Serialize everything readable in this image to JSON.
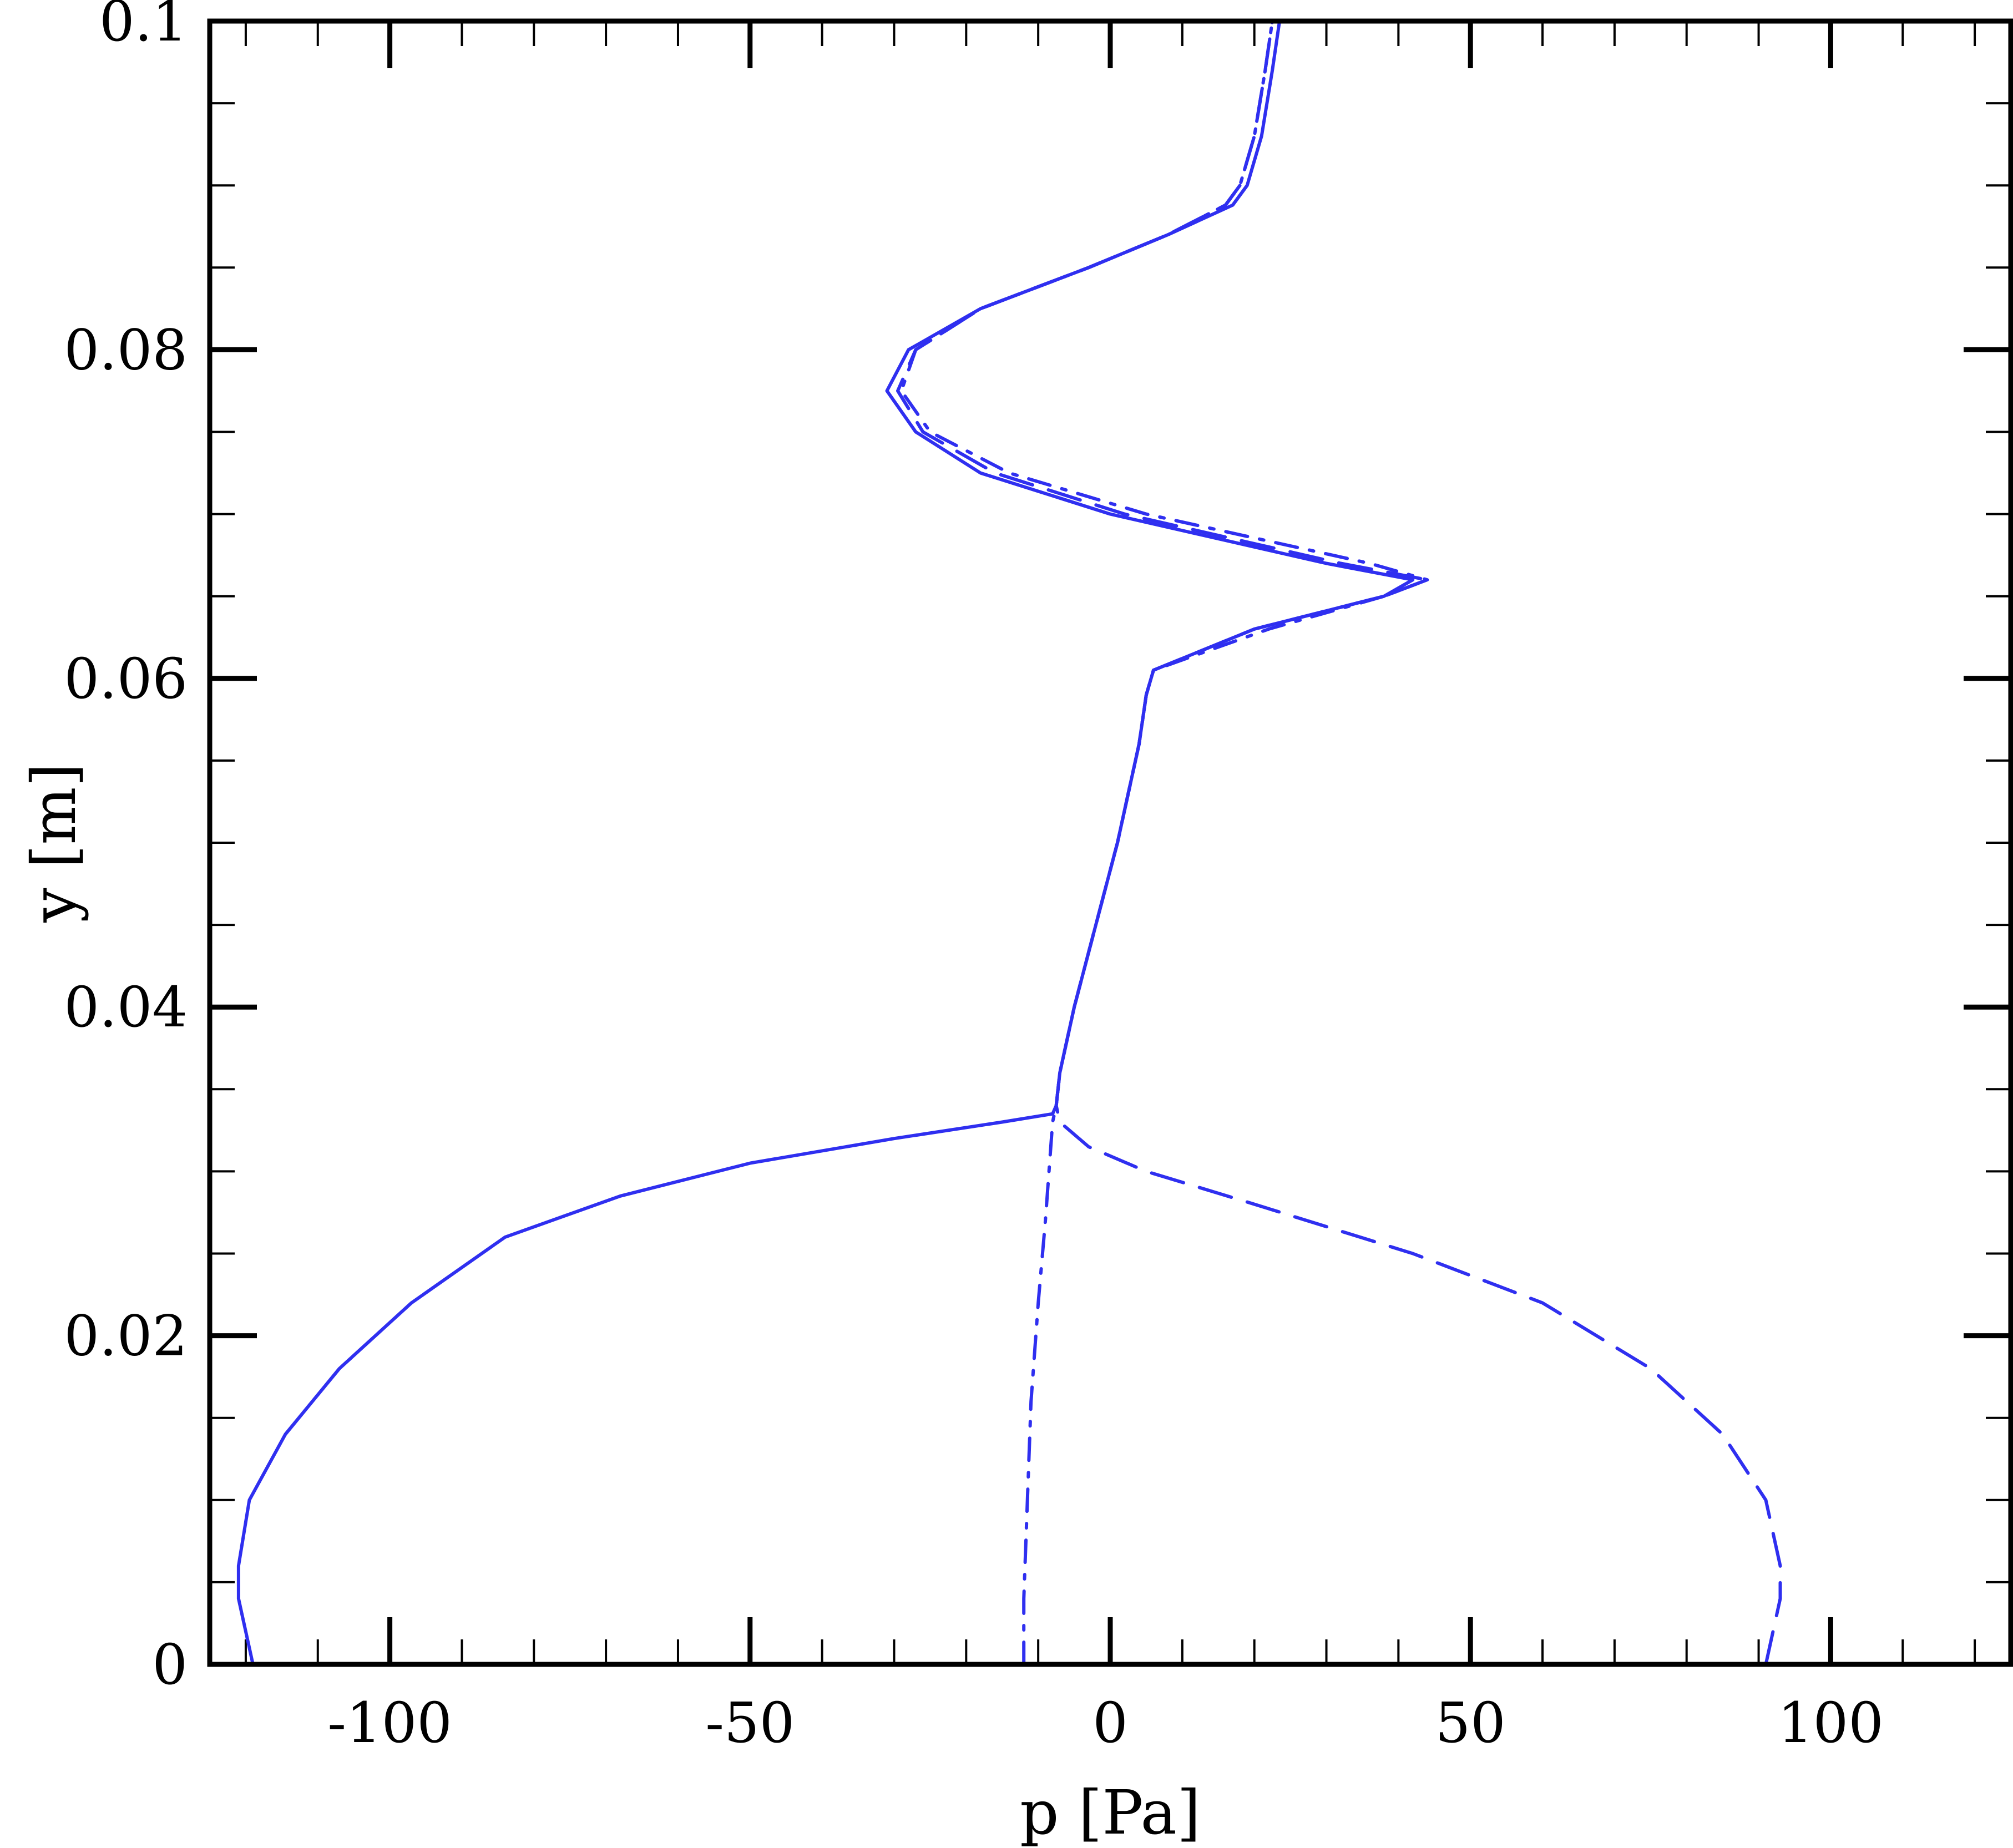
{
  "chart_data": {
    "type": "line",
    "title": "",
    "xlabel": "p [Pa]",
    "ylabel": "y [m]",
    "xlim": [
      -125,
      125
    ],
    "ylim": [
      0,
      0.1
    ],
    "x_ticks": [
      -100,
      -50,
      0,
      50,
      100
    ],
    "x_tick_labels": [
      "-100",
      "-50",
      "0",
      "50",
      "100"
    ],
    "y_ticks": [
      0,
      0.02,
      0.04,
      0.06,
      0.08,
      0.1
    ],
    "y_tick_labels": [
      "0",
      "0.02",
      "0.04",
      "0.06",
      "0.08",
      "0.1"
    ],
    "grid": false,
    "line_color": "#2f2ff0",
    "series": [
      {
        "style": "solid",
        "points": [
          [
            -119,
            0
          ],
          [
            -121,
            0.004
          ],
          [
            -121,
            0.006
          ],
          [
            -119.5,
            0.01
          ],
          [
            -114.5,
            0.014
          ],
          [
            -107,
            0.018
          ],
          [
            -97,
            0.022
          ],
          [
            -84,
            0.026
          ],
          [
            -68,
            0.0285
          ],
          [
            -50,
            0.0305
          ],
          [
            -30,
            0.032
          ],
          [
            -15,
            0.033
          ],
          [
            -8,
            0.0335
          ],
          [
            -7.5,
            0.034
          ],
          [
            -7,
            0.036
          ],
          [
            -5,
            0.04
          ],
          [
            -2,
            0.045
          ],
          [
            1,
            0.05
          ],
          [
            4,
            0.056
          ],
          [
            5,
            0.059
          ],
          [
            6,
            0.0605
          ],
          [
            20,
            0.063
          ],
          [
            38,
            0.065
          ],
          [
            42,
            0.066
          ],
          [
            30,
            0.067
          ],
          [
            0,
            0.07
          ],
          [
            -18,
            0.0725
          ],
          [
            -27,
            0.075
          ],
          [
            -31,
            0.0775
          ],
          [
            -28,
            0.08
          ],
          [
            -18,
            0.0825
          ],
          [
            -3,
            0.085
          ],
          [
            8,
            0.087
          ],
          [
            17,
            0.0888
          ],
          [
            19,
            0.09
          ],
          [
            21,
            0.093
          ],
          [
            22.5,
            0.097
          ],
          [
            23.5,
            0.1
          ]
        ]
      },
      {
        "style": "dashed",
        "points": [
          [
            91,
            0
          ],
          [
            93,
            0.004
          ],
          [
            93,
            0.006
          ],
          [
            91,
            0.01
          ],
          [
            85,
            0.014
          ],
          [
            75,
            0.018
          ],
          [
            60,
            0.022
          ],
          [
            42,
            0.025
          ],
          [
            20,
            0.028
          ],
          [
            5,
            0.03
          ],
          [
            -3,
            0.0315
          ],
          [
            -7,
            0.033
          ],
          [
            -7.5,
            0.034
          ],
          [
            -7,
            0.036
          ],
          [
            -5,
            0.04
          ],
          [
            -2,
            0.045
          ],
          [
            1,
            0.05
          ],
          [
            4,
            0.056
          ],
          [
            5,
            0.059
          ],
          [
            6,
            0.0605
          ],
          [
            20,
            0.063
          ],
          [
            38,
            0.065
          ],
          [
            44,
            0.066
          ],
          [
            32,
            0.067
          ],
          [
            2,
            0.07
          ],
          [
            -16,
            0.0725
          ],
          [
            -26,
            0.075
          ],
          [
            -29.5,
            0.0775
          ],
          [
            -27,
            0.08
          ],
          [
            -18,
            0.0825
          ],
          [
            -3,
            0.085
          ],
          [
            8,
            0.087
          ],
          [
            16,
            0.0888
          ],
          [
            18,
            0.09
          ],
          [
            20,
            0.093
          ],
          [
            21.5,
            0.097
          ],
          [
            22.5,
            0.1
          ]
        ]
      },
      {
        "style": "dashdot",
        "points": [
          [
            -12,
            0
          ],
          [
            -12,
            0.004
          ],
          [
            -11.5,
            0.01
          ],
          [
            -11,
            0.016
          ],
          [
            -10,
            0.022
          ],
          [
            -9,
            0.027
          ],
          [
            -8.5,
            0.03
          ],
          [
            -8,
            0.033
          ],
          [
            -7.5,
            0.034
          ],
          [
            -7,
            0.036
          ],
          [
            -5,
            0.04
          ],
          [
            -2,
            0.045
          ],
          [
            1,
            0.05
          ],
          [
            4,
            0.056
          ],
          [
            5,
            0.059
          ],
          [
            6,
            0.0605
          ],
          [
            22,
            0.063
          ],
          [
            38,
            0.065
          ],
          [
            44,
            0.066
          ],
          [
            36,
            0.067
          ],
          [
            5,
            0.07
          ],
          [
            -14,
            0.0725
          ],
          [
            -25,
            0.075
          ],
          [
            -29,
            0.0775
          ],
          [
            -27,
            0.08
          ],
          [
            -18,
            0.0825
          ],
          [
            -3,
            0.085
          ],
          [
            8,
            0.087
          ],
          [
            16,
            0.0888
          ],
          [
            18,
            0.09
          ],
          [
            20,
            0.093
          ],
          [
            21.5,
            0.097
          ],
          [
            22.5,
            0.1
          ]
        ]
      }
    ]
  }
}
